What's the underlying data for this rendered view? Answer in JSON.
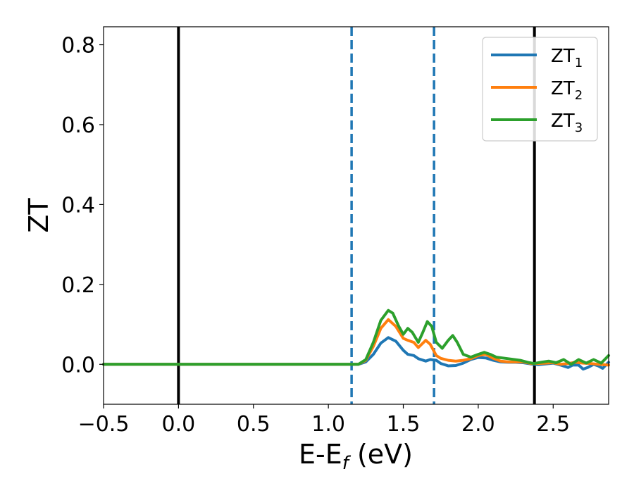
{
  "chart_data": {
    "type": "line",
    "title": "",
    "xlabel": "E-E",
    "xlabel_sub": "f",
    "xlabel_unit": " (eV)",
    "ylabel": "ZT",
    "xlim": [
      -0.5,
      2.87
    ],
    "ylim": [
      -0.1,
      0.845
    ],
    "x_ticks": [
      -0.5,
      0.0,
      0.5,
      1.0,
      1.5,
      2.0,
      2.5
    ],
    "x_tick_labels": [
      "−0.5",
      "0.0",
      "0.5",
      "1.0",
      "1.5",
      "2.0",
      "2.5"
    ],
    "y_ticks": [
      0.0,
      0.2,
      0.4,
      0.6,
      0.8
    ],
    "y_tick_labels": [
      "0.0",
      "0.2",
      "0.4",
      "0.6",
      "0.8"
    ],
    "grid": false,
    "legend_position": "top-right",
    "vertical_lines": [
      {
        "x": 0.0,
        "style": "solid",
        "color": "#000000"
      },
      {
        "x": 2.375,
        "style": "solid",
        "color": "#000000"
      },
      {
        "x": 1.155,
        "style": "dashed",
        "color": "#1f77b4"
      },
      {
        "x": 1.705,
        "style": "dashed",
        "color": "#1f77b4"
      }
    ],
    "series": [
      {
        "name": "ZT",
        "name_sub": "1",
        "color": "#1f77b4",
        "points": [
          [
            -0.5,
            0
          ],
          [
            1.2,
            0
          ],
          [
            1.25,
            0.006
          ],
          [
            1.3,
            0.025
          ],
          [
            1.35,
            0.053
          ],
          [
            1.4,
            0.067
          ],
          [
            1.45,
            0.058
          ],
          [
            1.5,
            0.035
          ],
          [
            1.53,
            0.025
          ],
          [
            1.57,
            0.022
          ],
          [
            1.6,
            0.014
          ],
          [
            1.65,
            0.008
          ],
          [
            1.68,
            0.012
          ],
          [
            1.72,
            0.01
          ],
          [
            1.75,
            0.002
          ],
          [
            1.8,
            -0.004
          ],
          [
            1.85,
            -0.003
          ],
          [
            1.9,
            0.003
          ],
          [
            1.95,
            0.012
          ],
          [
            2.0,
            0.017
          ],
          [
            2.05,
            0.016
          ],
          [
            2.1,
            0.01
          ],
          [
            2.15,
            0.006
          ],
          [
            2.2,
            0.005
          ],
          [
            2.25,
            0.005
          ],
          [
            2.3,
            0.004
          ],
          [
            2.35,
            0.001
          ],
          [
            2.4,
            -0.001
          ],
          [
            2.45,
            0.001
          ],
          [
            2.5,
            0.003
          ],
          [
            2.55,
            -0.002
          ],
          [
            2.6,
            -0.008
          ],
          [
            2.63,
            -0.002
          ],
          [
            2.67,
            -0.002
          ],
          [
            2.7,
            -0.012
          ],
          [
            2.73,
            -0.008
          ],
          [
            2.77,
            0
          ],
          [
            2.8,
            -0.004
          ],
          [
            2.83,
            -0.01
          ],
          [
            2.87,
            0.005
          ]
        ]
      },
      {
        "name": "ZT",
        "name_sub": "2",
        "color": "#ff7f0e",
        "points": [
          [
            -0.5,
            0
          ],
          [
            1.2,
            0
          ],
          [
            1.25,
            0.01
          ],
          [
            1.3,
            0.045
          ],
          [
            1.35,
            0.09
          ],
          [
            1.4,
            0.112
          ],
          [
            1.45,
            0.095
          ],
          [
            1.5,
            0.065
          ],
          [
            1.53,
            0.06
          ],
          [
            1.57,
            0.055
          ],
          [
            1.6,
            0.042
          ],
          [
            1.65,
            0.06
          ],
          [
            1.68,
            0.05
          ],
          [
            1.72,
            0.022
          ],
          [
            1.75,
            0.015
          ],
          [
            1.8,
            0.01
          ],
          [
            1.85,
            0.008
          ],
          [
            1.9,
            0.01
          ],
          [
            1.95,
            0.014
          ],
          [
            2.0,
            0.022
          ],
          [
            2.05,
            0.025
          ],
          [
            2.1,
            0.015
          ],
          [
            2.15,
            0.008
          ],
          [
            2.2,
            0.006
          ],
          [
            2.25,
            0.006
          ],
          [
            2.3,
            0.006
          ],
          [
            2.35,
            0.002
          ],
          [
            2.4,
            0.002
          ],
          [
            2.45,
            0.003
          ],
          [
            2.5,
            0.004
          ],
          [
            2.55,
            0
          ],
          [
            2.6,
            0.002
          ],
          [
            2.65,
            0.005
          ],
          [
            2.7,
            0.003
          ],
          [
            2.75,
            0.002
          ],
          [
            2.8,
            0
          ],
          [
            2.87,
            -0.002
          ]
        ]
      },
      {
        "name": "ZT",
        "name_sub": "3",
        "color": "#2ca02c",
        "points": [
          [
            -0.5,
            0
          ],
          [
            1.2,
            0
          ],
          [
            1.25,
            0.012
          ],
          [
            1.3,
            0.055
          ],
          [
            1.35,
            0.11
          ],
          [
            1.4,
            0.135
          ],
          [
            1.43,
            0.128
          ],
          [
            1.47,
            0.095
          ],
          [
            1.5,
            0.075
          ],
          [
            1.53,
            0.09
          ],
          [
            1.56,
            0.08
          ],
          [
            1.6,
            0.055
          ],
          [
            1.63,
            0.08
          ],
          [
            1.66,
            0.107
          ],
          [
            1.69,
            0.095
          ],
          [
            1.72,
            0.055
          ],
          [
            1.76,
            0.04
          ],
          [
            1.8,
            0.06
          ],
          [
            1.83,
            0.072
          ],
          [
            1.86,
            0.055
          ],
          [
            1.9,
            0.025
          ],
          [
            1.95,
            0.018
          ],
          [
            2.0,
            0.025
          ],
          [
            2.04,
            0.03
          ],
          [
            2.08,
            0.025
          ],
          [
            2.12,
            0.018
          ],
          [
            2.2,
            0.014
          ],
          [
            2.28,
            0.01
          ],
          [
            2.33,
            0.005
          ],
          [
            2.37,
            0.002
          ],
          [
            2.42,
            0.005
          ],
          [
            2.47,
            0.008
          ],
          [
            2.52,
            0.004
          ],
          [
            2.57,
            0.012
          ],
          [
            2.62,
            0
          ],
          [
            2.67,
            0.012
          ],
          [
            2.72,
            0.003
          ],
          [
            2.77,
            0.012
          ],
          [
            2.82,
            0.003
          ],
          [
            2.87,
            0.022
          ]
        ]
      }
    ]
  }
}
